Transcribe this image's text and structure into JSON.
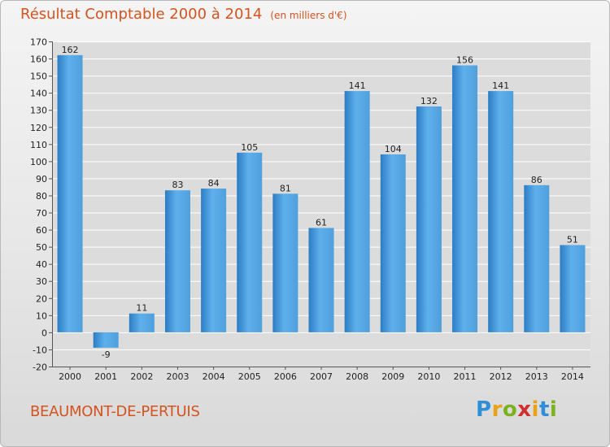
{
  "title": "Résultat Comptable 2000 à 2014",
  "unit_note": "(en milliers d'€)",
  "commune": "BEAUMONT-DE-PERTUIS",
  "logo": {
    "letters": [
      "P",
      "r",
      "o",
      "x",
      "i",
      "t",
      "i"
    ],
    "colors": [
      "#2e8fd8",
      "#e8a21a",
      "#7bb21d",
      "#d12f2f",
      "#e8a21a",
      "#2e8fd8",
      "#7bb21d"
    ]
  },
  "colors": {
    "title": "#d4531f",
    "bar_light": "#5eb0ec",
    "bar_dark": "#2c7cc4",
    "grid": "#ffffff",
    "plot_bg": "#dcdcdc"
  },
  "chart_data": {
    "type": "bar",
    "categories": [
      "2000",
      "2001",
      "2002",
      "2003",
      "2004",
      "2005",
      "2006",
      "2007",
      "2008",
      "2009",
      "2010",
      "2011",
      "2012",
      "2013",
      "2014"
    ],
    "values": [
      162,
      -9,
      11,
      83,
      84,
      105,
      81,
      61,
      141,
      104,
      132,
      156,
      141,
      86,
      51
    ],
    "ylim": [
      -20,
      170
    ],
    "ytick_step": 10,
    "grid": true,
    "xlabel": "",
    "ylabel": ""
  }
}
